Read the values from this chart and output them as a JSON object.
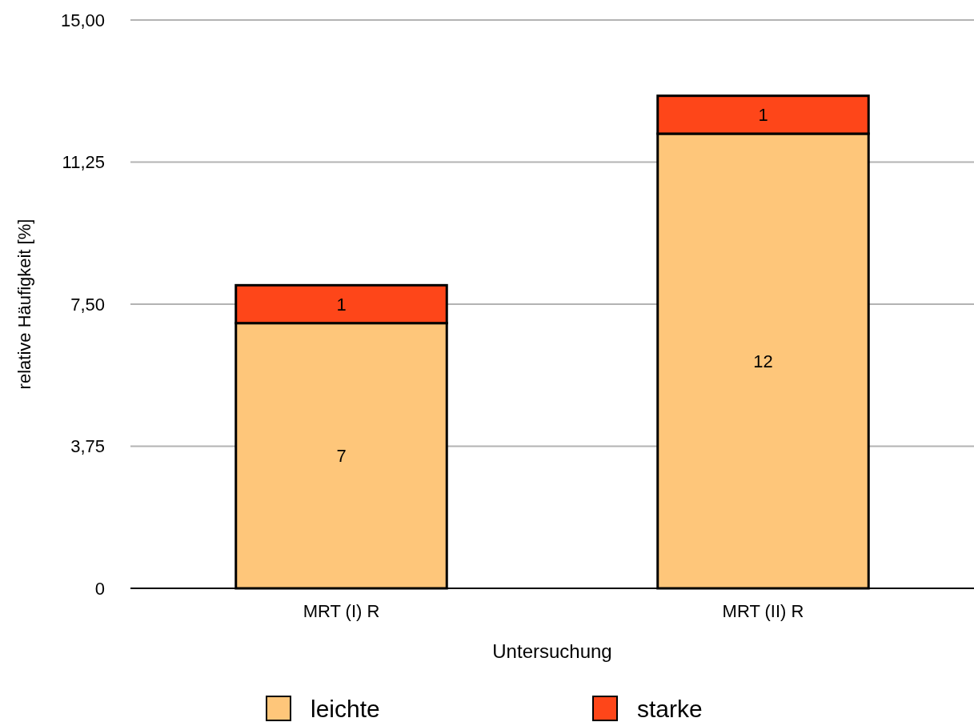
{
  "chart_data": {
    "type": "bar",
    "stacked": true,
    "xlabel": "Untersuchung",
    "ylabel": "relative Häufigkeit [%]",
    "categories": [
      "MRT (I) R",
      "MRT (II) R"
    ],
    "series": [
      {
        "name": "leichte",
        "color": "#fec67a",
        "values": [
          7,
          12
        ]
      },
      {
        "name": "starke",
        "color": "#fe4619",
        "values": [
          1,
          1
        ]
      }
    ],
    "ylim": [
      0,
      15
    ],
    "yticks": [
      0,
      {
        "value": 3.75,
        "label": "3,75"
      },
      {
        "value": 7.5,
        "label": "7,50"
      },
      {
        "value": 11.25,
        "label": "11,25"
      },
      {
        "value": 15,
        "label": "15,00"
      }
    ],
    "grid": "y",
    "legend": "bottom",
    "data_labels": true
  }
}
